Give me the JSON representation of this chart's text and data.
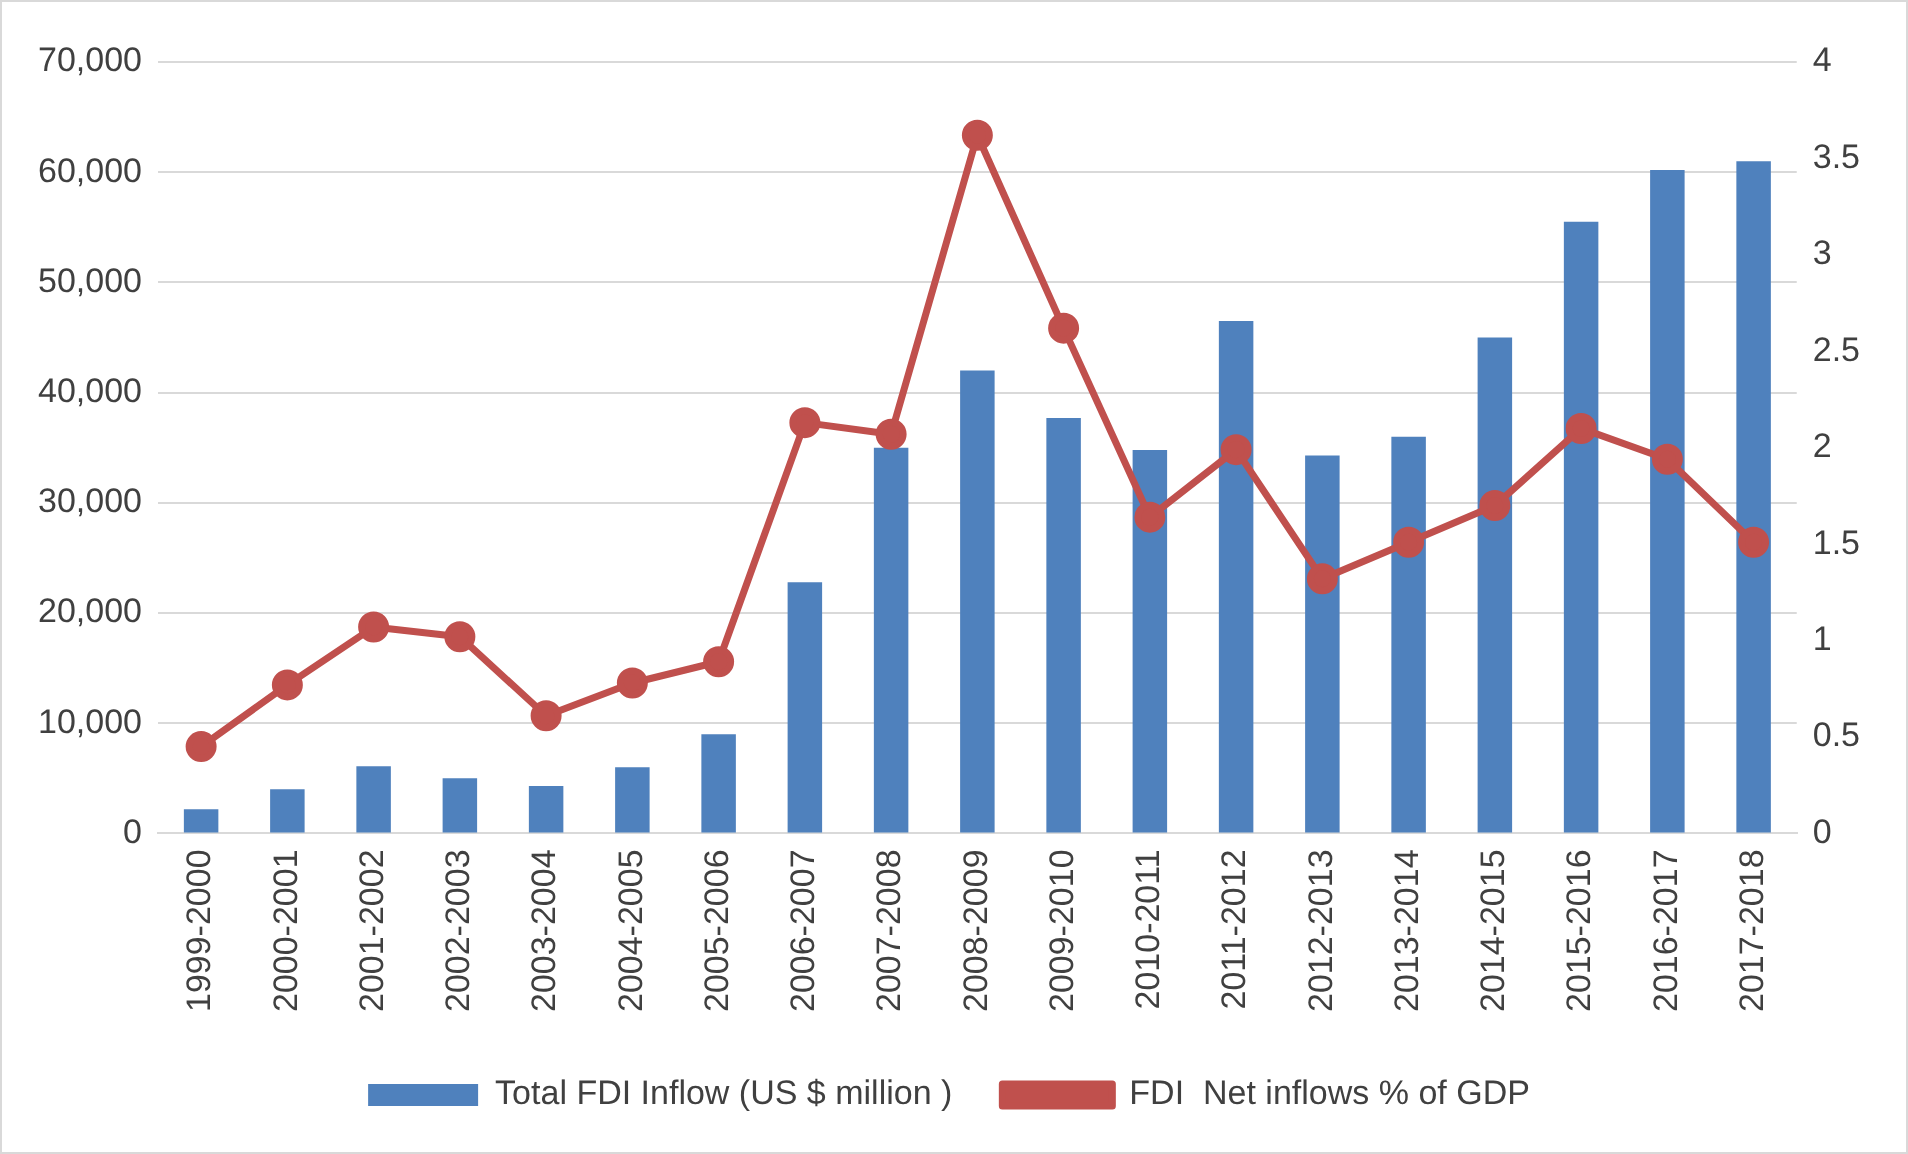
{
  "chart_data": {
    "type": "bar",
    "categories": [
      "1999-2000",
      "2000-2001",
      "2001-2002",
      "2002-2003",
      "2003-2004",
      "2004-2005",
      "2005-2006",
      "2006-2007",
      "2007-2008",
      "2008-2009",
      "2009-2010",
      "2010-2011",
      "2011-2012",
      "2012-2013",
      "2013-2014",
      "2014-2015",
      "2015-2016",
      "2016-2017",
      "2017-2018"
    ],
    "series": [
      {
        "name": "Total FDI Inflow (US $ million )",
        "color": "#4f81bd",
        "values": [
          2200,
          4000,
          6100,
          5000,
          4300,
          6000,
          9000,
          22800,
          35000,
          42000,
          37700,
          34800,
          46500,
          34300,
          36000,
          45000,
          55500,
          60200,
          61000
        ]
      },
      {
        "name": "FDI  Net inflows % of GDP",
        "type": "line",
        "axis": "y2",
        "color": "#c0504d",
        "marker": "circle",
        "values": [
          0.45,
          0.77,
          1.07,
          1.02,
          0.61,
          0.78,
          0.89,
          2.13,
          2.07,
          3.62,
          2.62,
          1.64,
          1.99,
          1.32,
          1.51,
          1.7,
          2.1,
          1.94,
          1.51
        ]
      }
    ],
    "ylim": [
      0,
      70000
    ],
    "yticks": [
      {
        "value": 0,
        "label": "0"
      },
      {
        "value": 10000,
        "label": "10,000"
      },
      {
        "value": 20000,
        "label": "20,000"
      },
      {
        "value": 30000,
        "label": "30,000"
      },
      {
        "value": 40000,
        "label": "40,000"
      },
      {
        "value": 50000,
        "label": "50,000"
      },
      {
        "value": 60000,
        "label": "60,000"
      },
      {
        "value": 70000,
        "label": "70,000"
      }
    ],
    "y2lim": [
      0,
      4
    ],
    "y2ticks": [
      0,
      0.5,
      1,
      1.5,
      2,
      2.5,
      3,
      3.5,
      4
    ],
    "grid": "y",
    "legend": "bottom"
  }
}
